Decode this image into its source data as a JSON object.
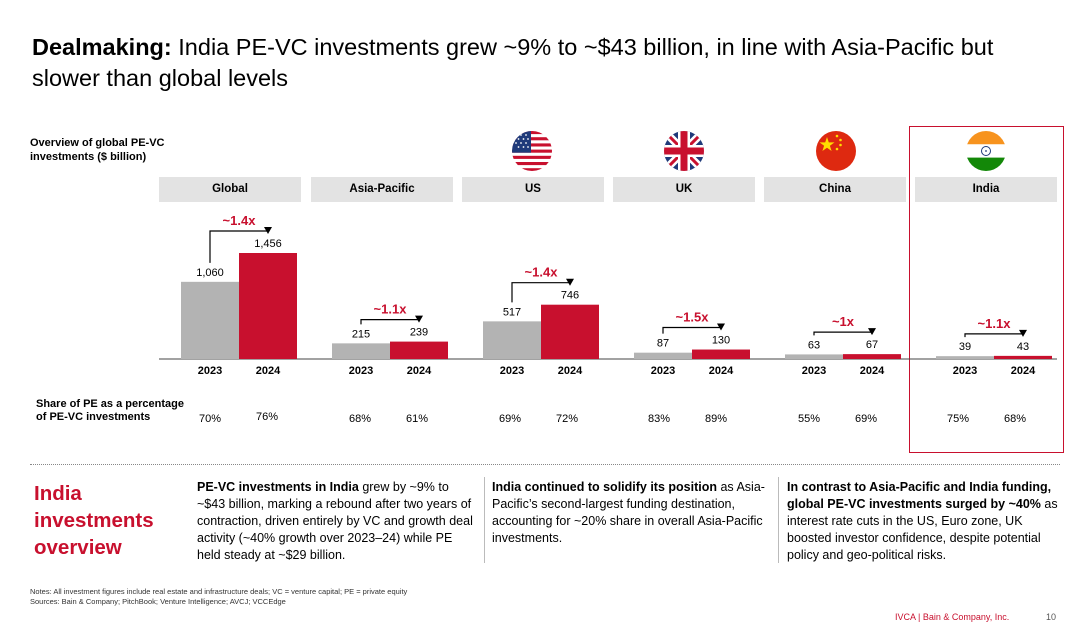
{
  "title": {
    "bold": "Dealmaking:",
    "rest": "India PE-VC investments grew ~9% to ~$43 billion, in line with Asia-Pacific but slower than global levels"
  },
  "overview_label": "Overview of global PE-VC investments ($ billion)",
  "share_label": "Share of PE as a percentage of PE-VC investments",
  "colors": {
    "y2023": "#b3b3b3",
    "y2024": "#c8102e",
    "accent": "#c8102e",
    "header_bg": "#e3e3e3"
  },
  "flags": [
    "us-flag-icon",
    "uk-flag-icon",
    "china-flag-icon",
    "india-flag-icon"
  ],
  "chart_data": {
    "type": "bar",
    "categories": [
      "Global",
      "Asia-Pacific",
      "US",
      "UK",
      "China",
      "India"
    ],
    "x_labels": [
      "2023",
      "2024"
    ],
    "series": [
      {
        "name": "2023",
        "values": [
          1060,
          215,
          517,
          87,
          63,
          39
        ],
        "labels": [
          "1,060",
          "215",
          "517",
          "87",
          "63",
          "39"
        ]
      },
      {
        "name": "2024",
        "values": [
          1456,
          239,
          746,
          130,
          67,
          43
        ],
        "labels": [
          "1,456",
          "239",
          "746",
          "130",
          "67",
          "43"
        ]
      }
    ],
    "growth": [
      "~1.4x",
      "~1.1x",
      "~1.4x",
      "~1.5x",
      "~1x",
      "~1.1x"
    ],
    "share_pe": {
      "2023": [
        "70%",
        "68%",
        "69%",
        "83%",
        "55%",
        "75%"
      ],
      "2024": [
        "76%",
        "61%",
        "72%",
        "89%",
        "69%",
        "68%"
      ]
    },
    "ylim": [
      0,
      1456
    ]
  },
  "section": {
    "title": "India investments overview",
    "col1_bold": "PE-VC investments in India",
    "col1_rest": " grew by ~9% to ~$43 billion, marking a rebound after two years of contraction, driven entirely by VC and growth deal activity (~40% growth over 2023–24) while PE held steady at ~$29 billion.",
    "col2_bold": "India continued to solidify its position",
    "col2_rest": " as Asia-Pacific’s second-largest funding destination, accounting for ~20% share in overall Asia-Pacific investments.",
    "col3_bold": "In contrast to Asia-Pacific and India funding, global PE-VC investments surged by ~40%",
    "col3_rest": " as interest rate cuts in the US, Euro zone, UK boosted investor confidence, despite potential policy and geo-political risks."
  },
  "notes": {
    "line1": "Notes: All investment figures include real estate and infrastructure deals; VC = venture capital; PE = private equity",
    "line2": "Sources: Bain & Company; PitchBook; Venture Intelligence; AVCJ; VCCEdge"
  },
  "footer": "IVCA | Bain & Company, Inc.",
  "page_number": "10"
}
